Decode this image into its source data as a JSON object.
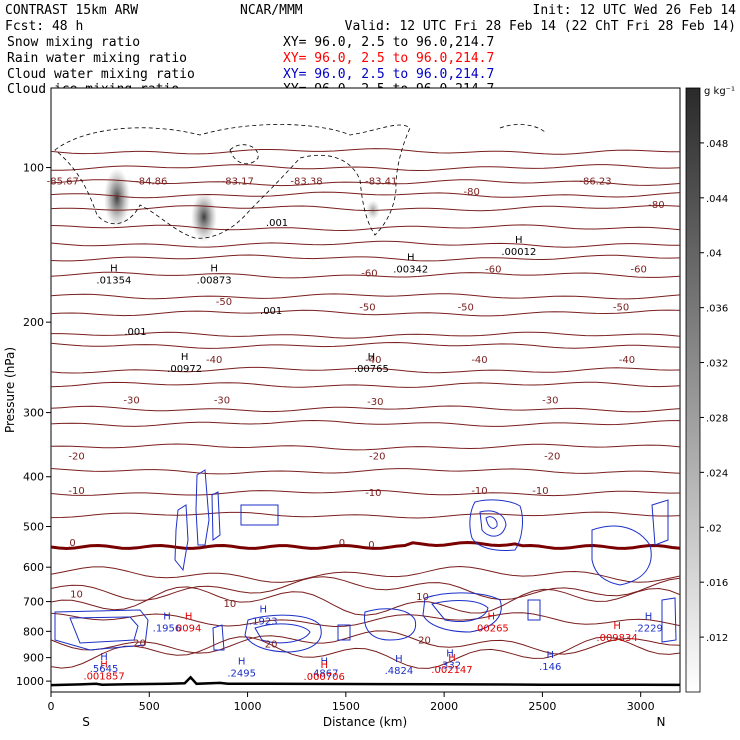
{
  "header": {
    "model": "CONTRAST 15km ARW",
    "org": "NCAR/MMM",
    "init": "Init: 12 UTC Wed 26 Feb 14",
    "fcst": "Fcst:    48 h",
    "valid": "Valid: 12 UTC Fri 28 Feb 14 (22 ChT Fri 28 Feb 14)",
    "xy_text": "XY=   96.0,   2.5 to   96.0,214.7"
  },
  "fields": [
    {
      "name": "Snow mixing ratio",
      "color": "#000000"
    },
    {
      "name": "Rain water mixing ratio",
      "color": "#ff0000"
    },
    {
      "name": "Cloud water mixing ratio",
      "color": "#0000c8"
    },
    {
      "name": "Cloud ice mixing ratio",
      "color": "#000000"
    }
  ],
  "colorbar": {
    "unit": "g kg⁻¹",
    "ticks": [
      ".012",
      ".016",
      ".02",
      ".024",
      ".028",
      ".032",
      ".036",
      ".04",
      ".044",
      ".048"
    ],
    "range": [
      0.008,
      0.052
    ]
  },
  "chart_data": {
    "type": "contour cross-section",
    "xlabel": "Distance (km)",
    "ylabel": "Pressure (hPa)",
    "xlim": [
      0,
      3200
    ],
    "ylim": [
      1050,
      70
    ],
    "x_ticks": [
      "0",
      "500",
      "1000",
      "1500",
      "2000",
      "2500",
      "3000"
    ],
    "y_ticks": [
      "100",
      "200",
      "300",
      "400",
      "500",
      "600",
      "700",
      "800",
      "900",
      "1000"
    ],
    "end_labels": {
      "left": "S",
      "right": "N"
    },
    "temperature_contour_labels": [
      {
        "x": 60,
        "p": 108,
        "label": "-85.67"
      },
      {
        "x": 510,
        "p": 108,
        "label": "-84.86"
      },
      {
        "x": 950,
        "p": 108,
        "label": "-83.17"
      },
      {
        "x": 1300,
        "p": 108,
        "label": "-83.38"
      },
      {
        "x": 1680,
        "p": 108,
        "label": "-83.41"
      },
      {
        "x": 2140,
        "p": 113,
        "label": "-80"
      },
      {
        "x": 2770,
        "p": 108,
        "label": "-86.23"
      },
      {
        "x": 3080,
        "p": 120,
        "label": "-80"
      },
      {
        "x": 1620,
        "p": 163,
        "label": "-60"
      },
      {
        "x": 2250,
        "p": 160,
        "label": "-60"
      },
      {
        "x": 2990,
        "p": 160,
        "label": "-60"
      },
      {
        "x": 880,
        "p": 185,
        "label": "-50"
      },
      {
        "x": 1610,
        "p": 190,
        "label": "-50"
      },
      {
        "x": 2110,
        "p": 190,
        "label": "-50"
      },
      {
        "x": 2900,
        "p": 190,
        "label": "-50"
      },
      {
        "x": 830,
        "p": 240,
        "label": "-40"
      },
      {
        "x": 1640,
        "p": 240,
        "label": "-40"
      },
      {
        "x": 2180,
        "p": 240,
        "label": "-40"
      },
      {
        "x": 2930,
        "p": 240,
        "label": "-40"
      },
      {
        "x": 410,
        "p": 288,
        "label": "-30"
      },
      {
        "x": 870,
        "p": 288,
        "label": "-30"
      },
      {
        "x": 1650,
        "p": 290,
        "label": "-30"
      },
      {
        "x": 2540,
        "p": 288,
        "label": "-30"
      },
      {
        "x": 130,
        "p": 370,
        "label": "-20"
      },
      {
        "x": 1660,
        "p": 370,
        "label": "-20"
      },
      {
        "x": 2550,
        "p": 370,
        "label": "-20"
      },
      {
        "x": 130,
        "p": 432,
        "label": "-10"
      },
      {
        "x": 1640,
        "p": 436,
        "label": "-10"
      },
      {
        "x": 2180,
        "p": 432,
        "label": "-10"
      },
      {
        "x": 2490,
        "p": 432,
        "label": "-10"
      },
      {
        "x": 110,
        "p": 546,
        "label": "0"
      },
      {
        "x": 1480,
        "p": 546,
        "label": "0"
      },
      {
        "x": 1630,
        "p": 550,
        "label": "0"
      },
      {
        "x": 130,
        "p": 688,
        "label": "10"
      },
      {
        "x": 910,
        "p": 717,
        "label": "10"
      },
      {
        "x": 1890,
        "p": 695,
        "label": "10"
      },
      {
        "x": 450,
        "p": 857,
        "label": "20"
      },
      {
        "x": 1120,
        "p": 860,
        "label": "20"
      },
      {
        "x": 1900,
        "p": 845,
        "label": "20"
      }
    ],
    "snow_ice_maxima": [
      {
        "x": 320,
        "p": 168,
        "label": ".01354"
      },
      {
        "x": 830,
        "p": 168,
        "label": ".00873"
      },
      {
        "x": 680,
        "p": 250,
        "label": ".00972"
      },
      {
        "x": 1630,
        "p": 250,
        "label": ".00765"
      },
      {
        "x": 1830,
        "p": 160,
        "label": ".00342"
      },
      {
        "x": 2380,
        "p": 148,
        "label": ".00012"
      }
    ],
    "snow_ice_contour_labels": [
      {
        "x": 1150,
        "p": 130,
        "label": ".001"
      },
      {
        "x": 1120,
        "p": 193,
        "label": ".001"
      },
      {
        "x": 430,
        "p": 212,
        "label": ".001"
      }
    ],
    "cloud_water_maxima": [
      {
        "x": 590,
        "p": 800,
        "label": ".1956"
      },
      {
        "x": 1080,
        "p": 775,
        "label": ".1923"
      },
      {
        "x": 3040,
        "p": 800,
        "label": ".2229"
      },
      {
        "x": 270,
        "p": 960,
        "label": ".5645"
      },
      {
        "x": 970,
        "p": 980,
        "label": ".2495"
      },
      {
        "x": 1390,
        "p": 980,
        "label": ".4867"
      },
      {
        "x": 1770,
        "p": 968,
        "label": ".4824"
      },
      {
        "x": 2030,
        "p": 945,
        "label": ".332"
      },
      {
        "x": 2540,
        "p": 952,
        "label": ".146"
      }
    ],
    "rain_water_maxima": [
      {
        "x": 700,
        "p": 800,
        "label": "0094"
      },
      {
        "x": 2240,
        "p": 800,
        "label": ".00265"
      },
      {
        "x": 2880,
        "p": 835,
        "label": ".009834"
      },
      {
        "x": 270,
        "p": 992,
        "label": ".001857"
      },
      {
        "x": 1390,
        "p": 995,
        "label": ".000706"
      },
      {
        "x": 2040,
        "p": 965,
        "label": ".002147"
      }
    ]
  }
}
